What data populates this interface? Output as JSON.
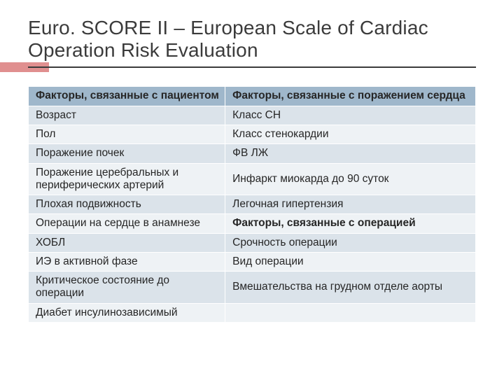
{
  "title": "Euro. SCORE II – European Scale of Cardiac Operation Risk Evaluation",
  "colors": {
    "header_bg": "#9fb7cb",
    "row_a_bg": "#dbe3ea",
    "row_b_bg": "#eef2f5",
    "accent_bar": "#e08f8f",
    "title_color": "#3b3b3b",
    "cell_text": "#262626",
    "row_border": "#ffffff"
  },
  "typography": {
    "title_fontsize_pt": 21,
    "cell_fontsize_pt": 11.5,
    "title_family": "Century Gothic",
    "body_family": "Arial"
  },
  "table": {
    "column_widths_pct": [
      44,
      56
    ],
    "header": {
      "left": "Факторы, связанные с пациентом",
      "right": "Факторы, связанные с поражением сердца"
    },
    "rows": [
      {
        "shade": "a",
        "left": "Возраст",
        "right": "Класс СН",
        "right_is_subheader": false
      },
      {
        "shade": "b",
        "left": "Пол",
        "right": "Класс стенокардии",
        "right_is_subheader": false
      },
      {
        "shade": "a",
        "left": "Поражение почек",
        "right": "ФВ ЛЖ",
        "right_is_subheader": false
      },
      {
        "shade": "b",
        "left": "Поражение  церебральных и периферических артерий",
        "right": "Инфаркт миокарда до 90 суток",
        "right_is_subheader": false
      },
      {
        "shade": "a",
        "left": "Плохая подвижность",
        "right": "Легочная гипертензия",
        "right_is_subheader": false
      },
      {
        "shade": "b",
        "left": "Операции на сердце в анамнезе",
        "right": "Факторы, связанные с операцией",
        "right_is_subheader": true
      },
      {
        "shade": "a",
        "left": "ХОБЛ",
        "right": "Срочность операции",
        "right_is_subheader": false
      },
      {
        "shade": "b",
        "left": "ИЭ в активной фазе",
        "right": "Вид операции",
        "right_is_subheader": false
      },
      {
        "shade": "a",
        "left": "Критическое состояние до операции",
        "right": "Вмешательства на грудном отделе аорты",
        "right_is_subheader": false
      },
      {
        "shade": "b",
        "left": "Диабет инсулинозависимый",
        "right": "",
        "right_is_subheader": false
      }
    ]
  }
}
